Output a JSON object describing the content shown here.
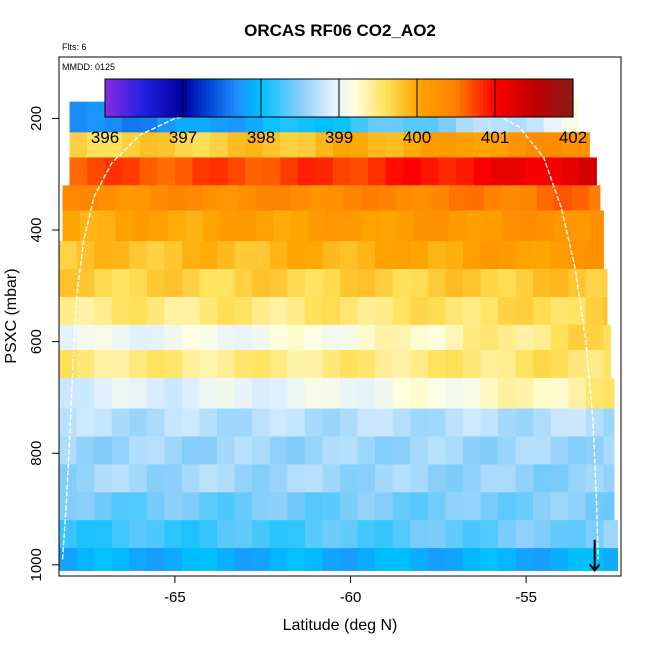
{
  "chart_data": {
    "type": "heatmap",
    "title": "ORCAS RF06 CO2_AO2",
    "flights_note": "Flts: 6",
    "date_note": "MMDD: 0125",
    "xlabel": "Latitude (deg N)",
    "ylabel": "PSXC (mbar)",
    "xlim": [
      -68.3,
      -52.3
    ],
    "ylim": [
      1020,
      90
    ],
    "x_ticks": [
      -65,
      -60,
      -55
    ],
    "x_tick_labels": [
      "-65",
      "-60",
      "-55"
    ],
    "y_ticks": [
      200,
      400,
      600,
      800,
      1000
    ],
    "y_tick_labels": [
      "200",
      "400",
      "600",
      "800",
      "1000"
    ],
    "colorbar": {
      "min": 396,
      "max": 402,
      "ticks": [
        396,
        397,
        398,
        399,
        400,
        401,
        402
      ],
      "tick_labels": [
        "396",
        "397",
        "398",
        "399",
        "400",
        "401",
        "402"
      ],
      "stops": [
        {
          "v": 396.0,
          "color": "#8a2be2"
        },
        {
          "v": 396.5,
          "color": "#2020e0"
        },
        {
          "v": 397.0,
          "color": "#0000a0"
        },
        {
          "v": 397.3,
          "color": "#0040d0"
        },
        {
          "v": 397.7,
          "color": "#1e90ff"
        },
        {
          "v": 398.0,
          "color": "#00bfff"
        },
        {
          "v": 398.5,
          "color": "#87cefa"
        },
        {
          "v": 398.9,
          "color": "#e0f0ff"
        },
        {
          "v": 399.2,
          "color": "#ffffe0"
        },
        {
          "v": 399.6,
          "color": "#ffe15a"
        },
        {
          "v": 400.0,
          "color": "#ffa500"
        },
        {
          "v": 400.5,
          "color": "#ff8000"
        },
        {
          "v": 401.0,
          "color": "#ff0000"
        },
        {
          "v": 401.5,
          "color": "#c00000"
        },
        {
          "v": 402.0,
          "color": "#8b1a1a"
        }
      ]
    },
    "pressure_layers": [
      {
        "p0": 170,
        "p1": 225,
        "lat0": -68.0,
        "lat1": -53.5,
        "base": 398.2,
        "west": -0.6,
        "east": 0.9
      },
      {
        "p0": 225,
        "p1": 270,
        "lat0": -68.0,
        "lat1": -53.2,
        "base": 399.7,
        "west": 0.0,
        "east": 0.7
      },
      {
        "p0": 270,
        "p1": 320,
        "lat0": -68.0,
        "lat1": -53.0,
        "base": 400.5,
        "west": 0.2,
        "east": 0.8
      },
      {
        "p0": 320,
        "p1": 365,
        "lat0": -68.2,
        "lat1": -52.9,
        "base": 400.3,
        "west": 0.0,
        "east": 0.3
      },
      {
        "p0": 365,
        "p1": 420,
        "lat0": -68.2,
        "lat1": -52.8,
        "base": 400.1,
        "west": -0.1,
        "east": 0.2
      },
      {
        "p0": 420,
        "p1": 470,
        "lat0": -68.3,
        "lat1": -52.8,
        "base": 399.9,
        "west": -0.1,
        "east": 0.3
      },
      {
        "p0": 470,
        "p1": 520,
        "lat0": -68.3,
        "lat1": -52.7,
        "base": 399.6,
        "west": 0.1,
        "east": 0.2
      },
      {
        "p0": 520,
        "p1": 570,
        "lat0": -68.3,
        "lat1": -52.7,
        "base": 399.4,
        "west": 0.1,
        "east": 0.3
      },
      {
        "p0": 570,
        "p1": 615,
        "lat0": -68.3,
        "lat1": -52.6,
        "base": 399.1,
        "west": -0.1,
        "east": 0.6
      },
      {
        "p0": 615,
        "p1": 665,
        "lat0": -68.3,
        "lat1": -52.6,
        "base": 399.3,
        "west": 0.2,
        "east": 0.3
      },
      {
        "p0": 665,
        "p1": 720,
        "lat0": -68.3,
        "lat1": -52.5,
        "base": 398.9,
        "west": 0.0,
        "east": 0.6
      },
      {
        "p0": 720,
        "p1": 770,
        "lat0": -68.3,
        "lat1": -52.5,
        "base": 398.7,
        "west": 0.0,
        "east": 0.0
      },
      {
        "p0": 770,
        "p1": 820,
        "lat0": -68.3,
        "lat1": -52.5,
        "base": 398.6,
        "west": 0.0,
        "east": 0.0
      },
      {
        "p0": 820,
        "p1": 870,
        "lat0": -68.3,
        "lat1": -52.5,
        "base": 398.7,
        "west": -0.1,
        "east": -0.2
      },
      {
        "p0": 870,
        "p1": 920,
        "lat0": -68.3,
        "lat1": -52.5,
        "base": 398.4,
        "west": 0.0,
        "east": 0.1
      },
      {
        "p0": 920,
        "p1": 970,
        "lat0": -68.3,
        "lat1": -52.4,
        "base": 398.3,
        "west": -0.1,
        "east": 0.2
      },
      {
        "p0": 970,
        "p1": 1010,
        "lat0": -68.3,
        "lat1": -52.4,
        "base": 397.9,
        "west": 0.0,
        "east": 0.0
      }
    ],
    "flight_track": [
      [
        -68.2,
        990
      ],
      [
        -68.1,
        900
      ],
      [
        -68.0,
        780
      ],
      [
        -67.9,
        640
      ],
      [
        -67.8,
        520
      ],
      [
        -67.6,
        420
      ],
      [
        -67.3,
        340
      ],
      [
        -66.8,
        280
      ],
      [
        -66.0,
        230
      ],
      [
        -65.0,
        200
      ],
      [
        -63.5,
        185
      ],
      [
        -61.0,
        182
      ],
      [
        -58.5,
        183
      ],
      [
        -56.0,
        188
      ],
      [
        -55.2,
        215
      ],
      [
        -54.5,
        270
      ],
      [
        -54.0,
        360
      ],
      [
        -53.6,
        470
      ],
      [
        -53.3,
        600
      ],
      [
        -53.1,
        740
      ],
      [
        -53.0,
        880
      ],
      [
        -52.95,
        990
      ]
    ],
    "end_arrow": {
      "lat": -53.05,
      "p_from": 955,
      "p_to": 1010
    }
  }
}
